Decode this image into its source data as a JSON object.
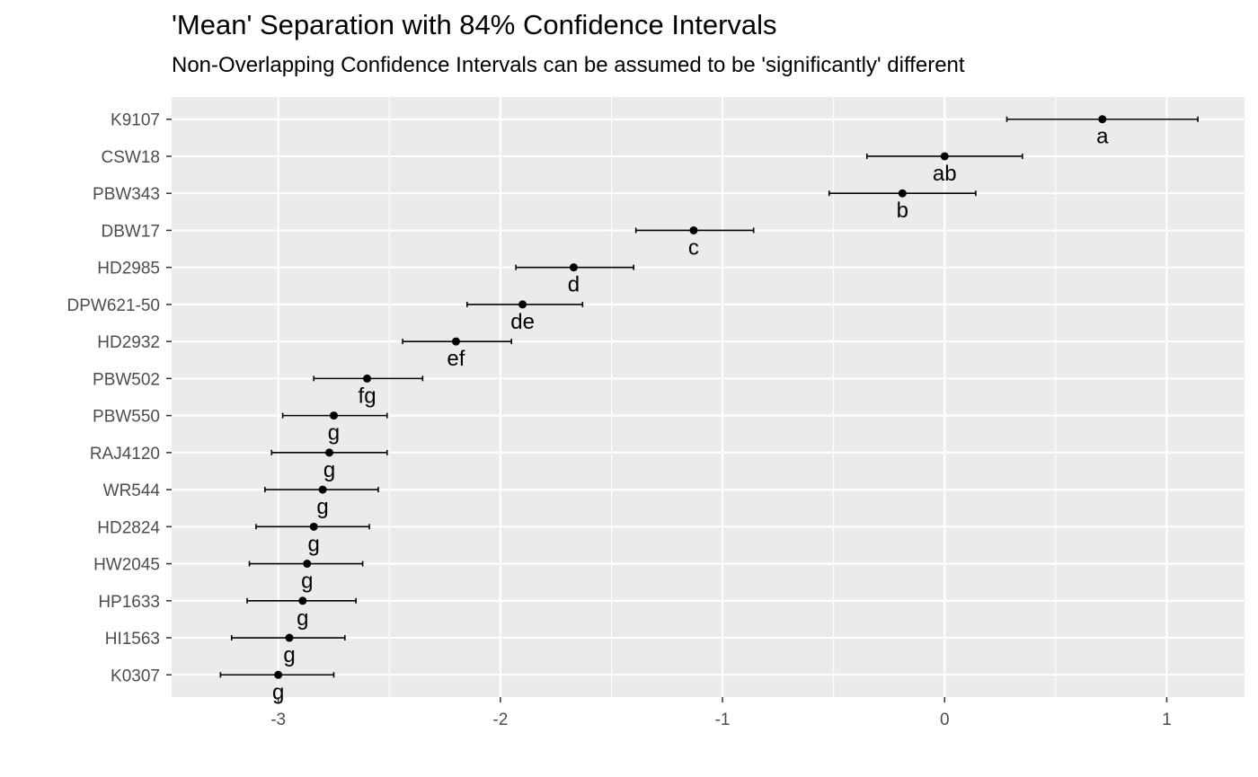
{
  "chart_data": {
    "type": "scatter",
    "title": "'Mean' Separation with 84% Confidence Intervals",
    "subtitle": "Non-Overlapping Confidence Intervals can be assumed to be 'significantly' different",
    "xlabel": "",
    "ylabel": "",
    "xlim": [
      -3.48,
      1.35
    ],
    "x_ticks": [
      "-3",
      "-2",
      "-1",
      "0",
      "1"
    ],
    "grid": true,
    "categories": [
      "K9107",
      "CSW18",
      "PBW343",
      "DBW17",
      "HD2985",
      "DPW621-50",
      "HD2932",
      "PBW502",
      "PBW550",
      "RAJ4120",
      "WR544",
      "HD2824",
      "HW2045",
      "HP1633",
      "HI1563",
      "K0307"
    ],
    "estimates": [
      0.71,
      0.0,
      -0.19,
      -1.13,
      -1.67,
      -1.9,
      -2.2,
      -2.6,
      -2.75,
      -2.77,
      -2.8,
      -2.84,
      -2.87,
      -2.89,
      -2.95,
      -3.0
    ],
    "lower": [
      0.28,
      -0.35,
      -0.52,
      -1.39,
      -1.93,
      -2.15,
      -2.44,
      -2.84,
      -2.98,
      -3.03,
      -3.06,
      -3.1,
      -3.13,
      -3.14,
      -3.21,
      -3.26
    ],
    "upper": [
      1.14,
      0.35,
      0.14,
      -0.86,
      -1.4,
      -1.63,
      -1.95,
      -2.35,
      -2.51,
      -2.51,
      -2.55,
      -2.59,
      -2.62,
      -2.65,
      -2.7,
      -2.75
    ],
    "groups": [
      "a",
      "ab",
      "b",
      "c",
      "d",
      "de",
      "ef",
      "fg",
      "g",
      "g",
      "g",
      "g",
      "g",
      "g",
      "g",
      "g"
    ]
  }
}
